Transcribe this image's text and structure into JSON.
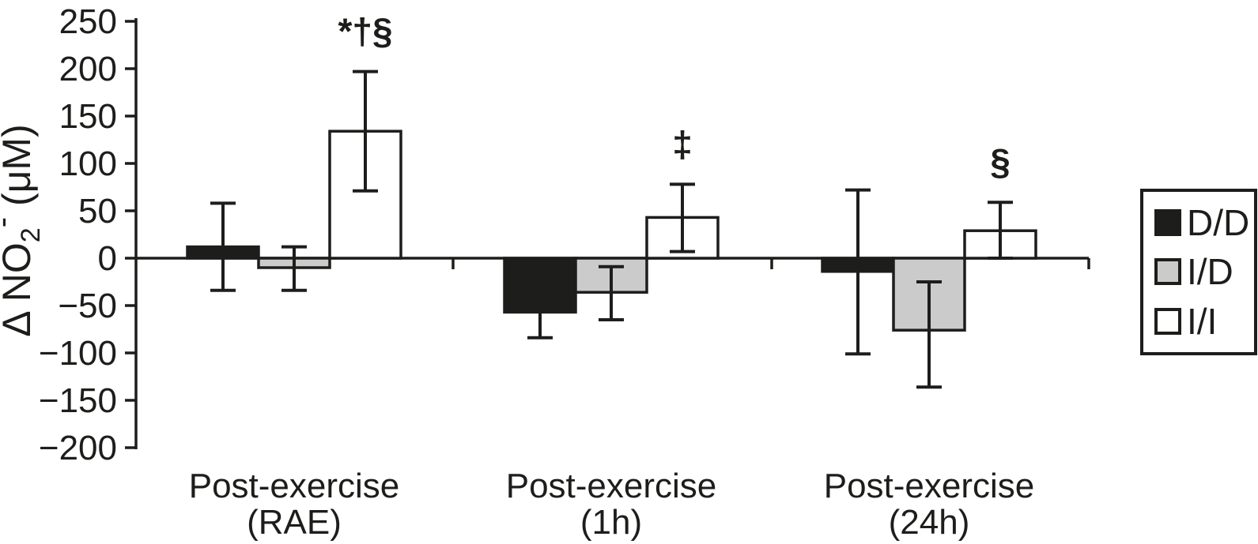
{
  "figure": {
    "background": "#ffffff",
    "ink": "#1d1d1b",
    "gray": "#cbcbcc",
    "white": "#ffffff"
  },
  "chart_data": {
    "type": "bar",
    "title": "",
    "xlabel": "",
    "ylabel": "Δ NO2- (μM)",
    "ylabel_parts": {
      "prefix": "Δ NO",
      "subscript": "2",
      "superscript": "-",
      "suffix": " (μM)"
    },
    "ylim": [
      -200,
      250
    ],
    "grid": false,
    "yticks": [
      {
        "v": 250,
        "label": "250"
      },
      {
        "v": 200,
        "label": "200"
      },
      {
        "v": 150,
        "label": "150"
      },
      {
        "v": 100,
        "label": "100"
      },
      {
        "v": 50,
        "label": "50"
      },
      {
        "v": 0,
        "label": "0"
      },
      {
        "v": -50,
        "label": "−50"
      },
      {
        "v": -100,
        "label": "−100"
      },
      {
        "v": -150,
        "label": "−150"
      },
      {
        "v": -200,
        "label": "−200"
      }
    ],
    "categories": [
      {
        "line1": "Post-exercise",
        "line2": "(RAE)"
      },
      {
        "line1": "Post-exercise",
        "line2": "(1h)"
      },
      {
        "line1": "Post-exercise",
        "line2": "(24h)"
      }
    ],
    "series": [
      {
        "name": "D/D",
        "fill": "#1d1d1b",
        "values": [
          12,
          -57,
          -14
        ],
        "err_high": [
          58,
          null,
          72
        ],
        "err_low": [
          -34,
          -84,
          -101
        ]
      },
      {
        "name": "I/D",
        "fill": "#cbcbcc",
        "values": [
          -10,
          -36,
          -76
        ],
        "err_high": [
          12,
          -9,
          -25
        ],
        "err_low": [
          -34,
          -65,
          -136
        ]
      },
      {
        "name": "I/I",
        "fill": "#ffffff",
        "values": [
          134,
          43,
          29
        ],
        "err_high": [
          197,
          78,
          59
        ],
        "err_low": [
          71,
          7,
          0
        ]
      }
    ],
    "annotations": [
      {
        "text": "*†§",
        "group": 0,
        "series": 2
      },
      {
        "text": "‡",
        "group": 1,
        "series": 2
      },
      {
        "text": "§",
        "group": 2,
        "series": 2
      }
    ],
    "legend": {
      "position": "right",
      "items": [
        "D/D",
        "I/D",
        "I/I"
      ]
    }
  }
}
